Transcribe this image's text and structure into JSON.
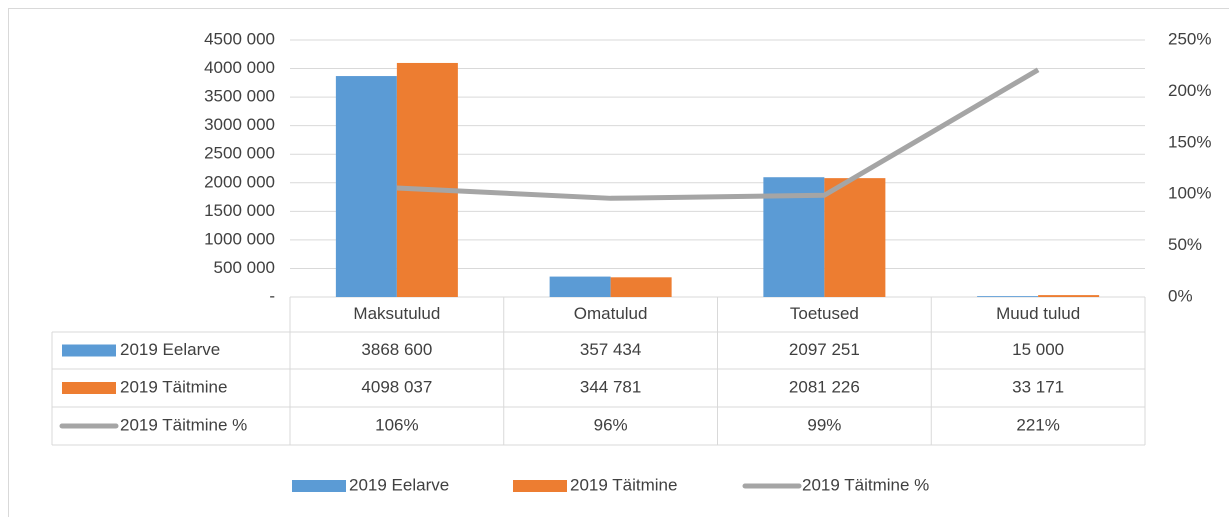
{
  "chart_data": {
    "type": "bar",
    "categories": [
      "Maksutulud",
      "Omatulud",
      "Toetused",
      "Muud tulud"
    ],
    "series": [
      {
        "name": "2019 Eelarve",
        "color": "#5b9bd5",
        "values": [
          3868600,
          357434,
          2097251,
          15000
        ],
        "value_labels": [
          "3868 600",
          "357 434",
          "2097 251",
          "15 000"
        ]
      },
      {
        "name": "2019 Täitmine",
        "color": "#ed7d31",
        "values": [
          4098037,
          344781,
          2081226,
          33171
        ],
        "value_labels": [
          "4098 037",
          "344 781",
          "2081 226",
          "33 171"
        ]
      },
      {
        "name": "2019 Täitmine %",
        "color": "#a5a5a5",
        "type": "line",
        "axis": "y2",
        "values": [
          106,
          96,
          99,
          221
        ],
        "value_labels": [
          "106%",
          "96%",
          "99%",
          "221%"
        ]
      }
    ],
    "ylim": [
      0,
      4500000
    ],
    "yticks": [
      {
        "value": 0,
        "label": "-"
      },
      {
        "value": 500000,
        "label": "500 000"
      },
      {
        "value": 1000000,
        "label": "1000 000"
      },
      {
        "value": 1500000,
        "label": "1500 000"
      },
      {
        "value": 2000000,
        "label": "2000 000"
      },
      {
        "value": 2500000,
        "label": "2500 000"
      },
      {
        "value": 3000000,
        "label": "3000 000"
      },
      {
        "value": 3500000,
        "label": "3500 000"
      },
      {
        "value": 4000000,
        "label": "4000 000"
      },
      {
        "value": 4500000,
        "label": "4500 000"
      }
    ],
    "y2lim": [
      0,
      250
    ],
    "y2ticks": [
      {
        "value": 0,
        "label": "0%"
      },
      {
        "value": 50,
        "label": "50%"
      },
      {
        "value": 100,
        "label": "100%"
      },
      {
        "value": 150,
        "label": "150%"
      },
      {
        "value": 200,
        "label": "200%"
      },
      {
        "value": 250,
        "label": "250%"
      }
    ],
    "grid": true,
    "data_table": true,
    "legend": "bottom"
  }
}
